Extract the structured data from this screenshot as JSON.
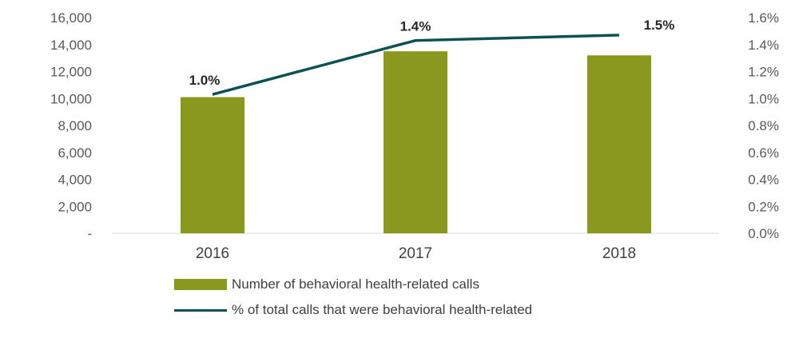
{
  "chart_data": {
    "type": "bar",
    "categories": [
      "2016",
      "2017",
      "2018"
    ],
    "series": [
      {
        "name": "Number of behavioral health-related calls",
        "type": "bar",
        "axis": "left",
        "values": [
          10100,
          13500,
          13200
        ],
        "color": "#8a991d"
      },
      {
        "name": "% of total calls that were behavioral health-related",
        "type": "line",
        "axis": "right",
        "values": [
          1.03,
          1.43,
          1.47
        ],
        "data_labels": [
          "1.0%",
          "1.4%",
          "1.5%"
        ],
        "color": "#0e5153"
      }
    ],
    "y_left": {
      "ylim": [
        0,
        16000
      ],
      "ticks": [
        0,
        2000,
        4000,
        6000,
        8000,
        10000,
        12000,
        14000,
        16000
      ],
      "tick_labels": [
        "-",
        "2,000",
        "4,000",
        "6,000",
        "8,000",
        "10,000",
        "12,000",
        "14,000",
        "16,000"
      ]
    },
    "y_right": {
      "ylim": [
        0,
        1.6
      ],
      "ticks": [
        0,
        0.2,
        0.4,
        0.6,
        0.8,
        1.0,
        1.2,
        1.4,
        1.6
      ],
      "tick_labels": [
        "0.0%",
        "0.2%",
        "0.4%",
        "0.6%",
        "0.8%",
        "1.0%",
        "1.2%",
        "1.4%",
        "1.6%"
      ]
    },
    "grid": false,
    "legend": "bottom"
  }
}
